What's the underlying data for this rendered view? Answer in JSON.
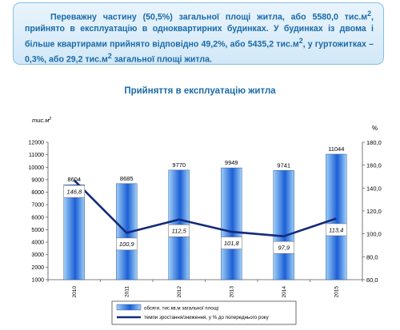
{
  "callout": {
    "text_before_unit1": "Переважну частину (50,5%) загальної площі житла, або 5580,0 тис.м",
    "text_after_unit1": ", прийнято в експлуатацію в одноквартирних будинках. У будинках із двома і більше квартирами прийнято відповідно 49,2%, або 5435,2 тис.м",
    "text_after_unit2": ", у гуртожитках – 0,3%, або 29,2 тис.м",
    "text_after_unit3": " загальної площі житла.",
    "superscript": "2"
  },
  "chart_data": {
    "type": "bar",
    "title": "Прийняття в експлуатацію житла",
    "categories": [
      "2010",
      "2011",
      "2012",
      "2013",
      "2014",
      "2015"
    ],
    "series": [
      {
        "name": "обсяги, тис.кв.м загальної площі",
        "type": "bar",
        "axis": "left",
        "values": [
          8604,
          8685,
          9770,
          9949,
          9741,
          11044
        ],
        "labels": [
          "8604",
          "8685",
          "9770",
          "9949",
          "9741",
          "11044"
        ]
      },
      {
        "name": "темпи зростання/зниження, у % до попереднього року",
        "type": "line",
        "axis": "right",
        "values": [
          146.8,
          100.9,
          112.5,
          101.8,
          97.9,
          113.4
        ],
        "labels": [
          "146,8",
          "100,9",
          "112,5",
          "101,8",
          "97,9",
          "113,4"
        ]
      }
    ],
    "y_left": {
      "label": "тис.м2",
      "range": [
        1000,
        12000
      ],
      "ticks": [
        "1000",
        "2000",
        "3000",
        "4000",
        "5000",
        "6000",
        "7000",
        "8000",
        "9000",
        "10000",
        "11000",
        "12000"
      ]
    },
    "y_right": {
      "label": "%",
      "range": [
        60,
        180
      ],
      "ticks": [
        "60,0",
        "80,0",
        "100,0",
        "120,0",
        "140,0",
        "160,0",
        "180,0"
      ]
    },
    "grid": false,
    "legend_position": "bottom",
    "colors": {
      "bar_light": "#9fd0f7",
      "bar_dark": "#1c5fd6",
      "line": "#142a78",
      "title": "#1a6aa8"
    }
  }
}
